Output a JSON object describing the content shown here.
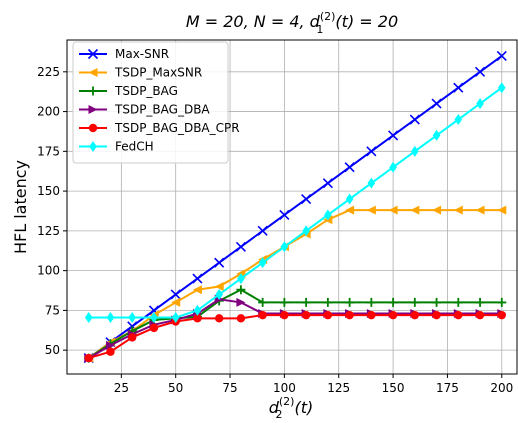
{
  "chart_data": {
    "type": "line",
    "title": "M = 20, N = 4, d_1^{(2)}(t) = 20",
    "title_parts": {
      "lhs": "M = 20, N = 4, d",
      "sub": "1",
      "sup": "(2)",
      "rhs": "(t) = 20"
    },
    "xlabel": "d_2^{(2)}(t)",
    "xlabel_parts": {
      "base": "d",
      "sub": "2",
      "sup": "(2)",
      "rhs": "(t)"
    },
    "ylabel": "HFL latency",
    "x": [
      10,
      20,
      30,
      40,
      50,
      60,
      70,
      80,
      90,
      100,
      110,
      120,
      130,
      140,
      150,
      160,
      170,
      180,
      190,
      200
    ],
    "xlim": [
      0,
      207
    ],
    "ylim": [
      35,
      245
    ],
    "xticks": [
      25,
      50,
      75,
      100,
      125,
      150,
      175,
      200
    ],
    "yticks": [
      50,
      75,
      100,
      125,
      150,
      175,
      200,
      225
    ],
    "grid": true,
    "legend_position": "top-left",
    "series": [
      {
        "name": "Max-SNR",
        "color": "#0000ff",
        "marker": "x",
        "values": [
          45,
          55,
          65,
          75,
          85,
          95,
          105,
          115,
          125,
          135,
          145,
          155,
          165,
          175,
          185,
          195,
          205,
          215,
          225,
          235
        ]
      },
      {
        "name": "TSDP_MaxSNR",
        "color": "#ffa500",
        "marker": "triangle-left",
        "values": [
          45,
          55,
          62,
          72,
          80,
          88,
          90,
          98,
          107,
          115,
          123,
          132,
          138,
          138,
          138,
          138,
          138,
          138,
          138,
          138
        ]
      },
      {
        "name": "TSDP_BAG",
        "color": "#008000",
        "marker": "plus",
        "values": [
          45,
          54,
          62,
          69,
          70,
          71,
          81,
          88,
          80,
          80,
          80,
          80,
          80,
          80,
          80,
          80,
          80,
          80,
          80,
          80
        ]
      },
      {
        "name": "TSDP_BAG_DBA",
        "color": "#800080",
        "marker": "triangle-right",
        "values": [
          45,
          53,
          60,
          66,
          69,
          73,
          82,
          80,
          73,
          73,
          73,
          73,
          73,
          73,
          73,
          73,
          73,
          73,
          73,
          73
        ]
      },
      {
        "name": "TSDP_BAG_DBA_CPR",
        "color": "#ff0000",
        "marker": "circle",
        "values": [
          45,
          49,
          58,
          64,
          68,
          70,
          70,
          70,
          72,
          72,
          72,
          72,
          72,
          72,
          72,
          72,
          72,
          72,
          72,
          72
        ]
      },
      {
        "name": "FedCH",
        "color": "#00ffff",
        "marker": "diamond",
        "values": [
          70.5,
          70.5,
          70.5,
          70.5,
          70.5,
          75,
          85,
          95,
          105,
          115,
          125,
          135,
          145,
          155,
          165,
          175,
          185,
          195,
          205,
          215
        ]
      }
    ]
  }
}
